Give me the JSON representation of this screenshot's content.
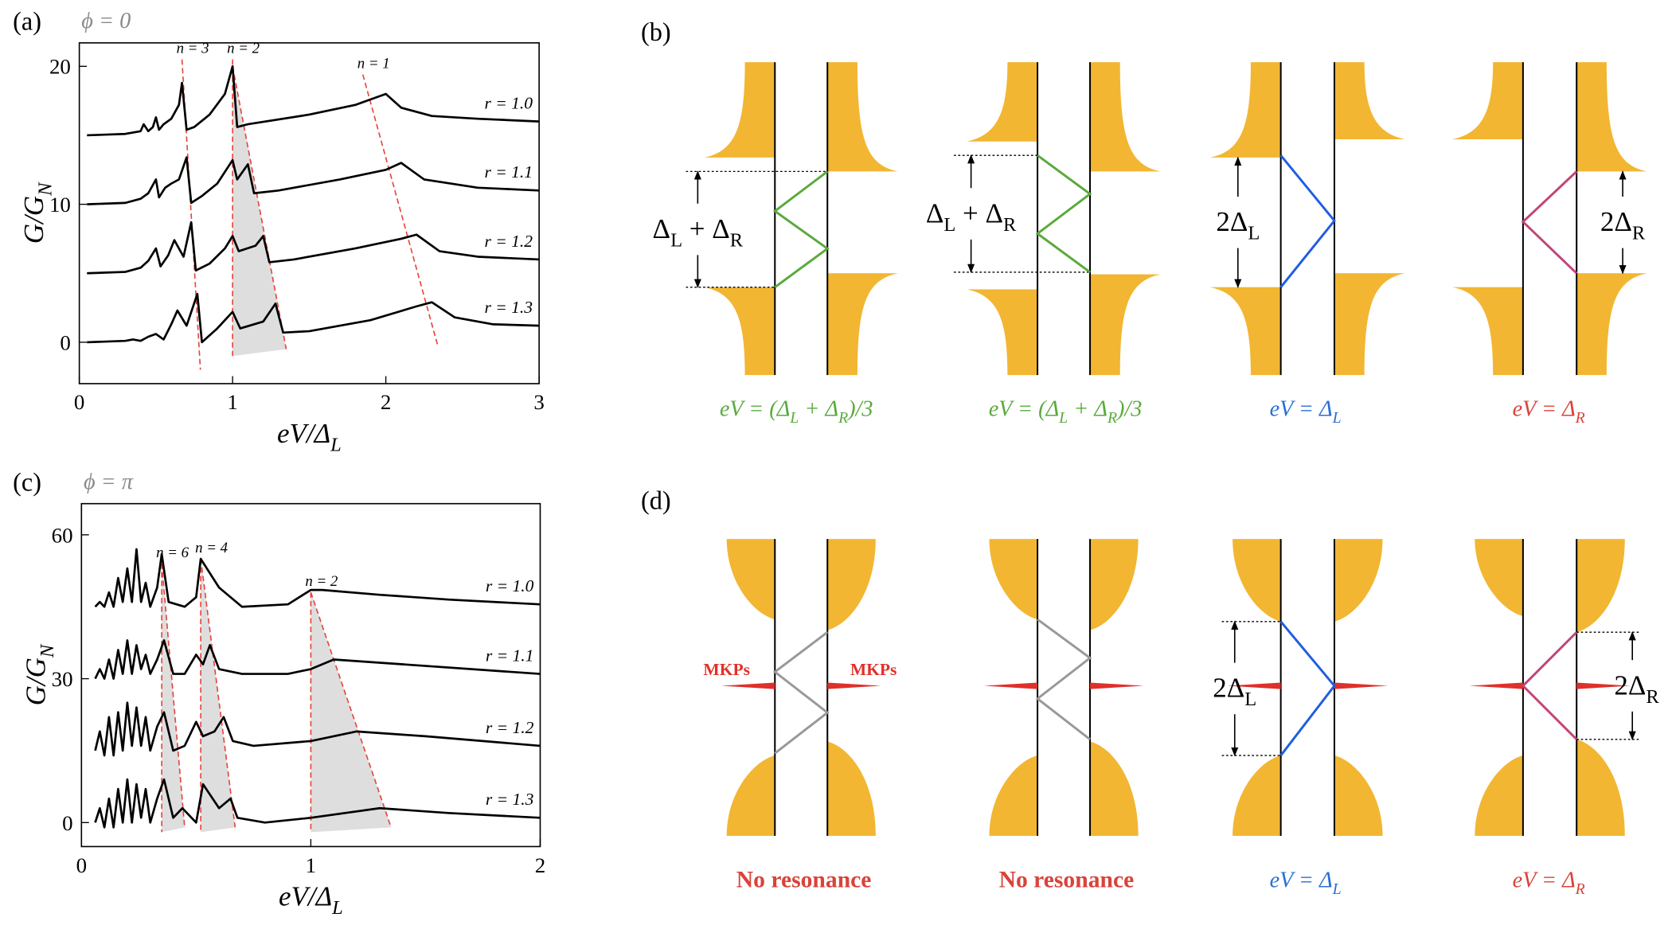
{
  "chart_data": [
    {
      "type": "line",
      "panel": "(a)",
      "title": "ϕ = 0",
      "xlabel": [
        "eV/Δ",
        "L"
      ],
      "ylabel": [
        "G/G",
        "N"
      ],
      "xlim": [
        0,
        3
      ],
      "ylim": [
        -3,
        21.7
      ],
      "xticks": [
        0,
        1,
        2,
        3
      ],
      "yticks": [
        0,
        10,
        20
      ],
      "guide_color": "#e8413a",
      "shade_color": "#dedede",
      "series": [
        {
          "name": "r = 1.0",
          "color": "#000000",
          "x": [
            0.05,
            0.3,
            0.4,
            0.42,
            0.45,
            0.48,
            0.5,
            0.52,
            0.55,
            0.6,
            0.65,
            0.67,
            0.7,
            0.75,
            0.85,
            0.95,
            1.0,
            1.03,
            1.1,
            1.5,
            1.8,
            2.0,
            2.1,
            2.3,
            2.6,
            3.0
          ],
          "values": [
            15,
            15.1,
            15.3,
            15.8,
            15.3,
            15.6,
            16.3,
            15.4,
            15.8,
            16.2,
            17.2,
            18.8,
            15.4,
            15.6,
            16.5,
            18,
            20,
            15.6,
            15.8,
            16.5,
            17.2,
            18,
            17,
            16.4,
            16.2,
            16
          ]
        },
        {
          "name": "r = 1.1",
          "color": "#000000",
          "x": [
            0.05,
            0.3,
            0.4,
            0.45,
            0.5,
            0.52,
            0.56,
            0.6,
            0.65,
            0.7,
            0.73,
            0.8,
            0.9,
            1.0,
            1.03,
            1.1,
            1.14,
            1.3,
            1.7,
            2.0,
            2.1,
            2.25,
            2.6,
            3.0
          ],
          "values": [
            10,
            10.1,
            10.4,
            10.8,
            11.8,
            10.5,
            11.2,
            11.5,
            11.8,
            13.4,
            10.1,
            10.6,
            11.5,
            13.2,
            11.8,
            12.9,
            10.8,
            11,
            11.8,
            12.5,
            13,
            11.8,
            11.2,
            11
          ]
        },
        {
          "name": "r = 1.2",
          "color": "#000000",
          "x": [
            0.05,
            0.3,
            0.4,
            0.45,
            0.5,
            0.53,
            0.58,
            0.62,
            0.68,
            0.73,
            0.76,
            0.85,
            0.95,
            1.0,
            1.04,
            1.15,
            1.2,
            1.24,
            1.4,
            1.8,
            2.1,
            2.2,
            2.35,
            2.6,
            3.0
          ],
          "values": [
            5,
            5.1,
            5.4,
            5.9,
            6.8,
            5.5,
            6.3,
            7.4,
            6.2,
            8.7,
            5.2,
            5.7,
            6.8,
            7.7,
            6.6,
            7,
            7.7,
            5.8,
            6,
            6.8,
            7.5,
            7.8,
            6.6,
            6.2,
            6
          ]
        },
        {
          "name": "r = 1.3",
          "color": "#000000",
          "x": [
            0.05,
            0.3,
            0.35,
            0.4,
            0.45,
            0.5,
            0.55,
            0.6,
            0.64,
            0.7,
            0.77,
            0.8,
            0.9,
            1.0,
            1.05,
            1.2,
            1.28,
            1.33,
            1.5,
            1.9,
            2.2,
            2.3,
            2.45,
            2.7,
            3.0
          ],
          "values": [
            0,
            0.1,
            0.2,
            0.1,
            0.4,
            0.6,
            0.2,
            1.3,
            2.3,
            1.2,
            3.5,
            0,
            1,
            2.2,
            1,
            1.5,
            2.8,
            0.7,
            0.8,
            1.6,
            2.6,
            2.9,
            1.8,
            1.3,
            1.2
          ]
        }
      ],
      "guides": [
        {
          "label": "n = 3",
          "x": [
            0.67,
            0.79
          ],
          "y": [
            20.5,
            -2
          ]
        },
        {
          "label": "n = 2",
          "x": [
            1.0,
            1.0
          ],
          "y": [
            20.5,
            -1
          ]
        },
        {
          "x": [
            1.0,
            1.35
          ],
          "y": [
            20,
            -0.5
          ]
        },
        {
          "label": "n = 1",
          "x": [
            1.85,
            2.34
          ],
          "y": [
            19.4,
            -0.3
          ]
        }
      ],
      "shaded": [
        {
          "x": [
            1.0,
            1.0,
            1.35
          ],
          "y": [
            20,
            -1,
            -0.5
          ]
        }
      ]
    },
    {
      "type": "line",
      "panel": "(c)",
      "title": "ϕ = π",
      "xlabel": [
        "eV/Δ",
        "L"
      ],
      "ylabel": [
        "G/G",
        "N"
      ],
      "xlim": [
        0,
        2
      ],
      "ylim": [
        -5,
        66.5
      ],
      "xticks": [
        0,
        1,
        2
      ],
      "yticks": [
        0,
        30,
        60
      ],
      "guide_color": "#e8413a",
      "shade_color": "#dedede",
      "series": [
        {
          "name": "r = 1.0",
          "color": "#000000",
          "x": [
            0.06,
            0.08,
            0.1,
            0.12,
            0.14,
            0.16,
            0.18,
            0.2,
            0.22,
            0.24,
            0.26,
            0.28,
            0.3,
            0.33,
            0.35,
            0.38,
            0.45,
            0.5,
            0.52,
            0.6,
            0.7,
            0.9,
            1.0,
            1.05,
            1.3,
            1.6,
            2.0
          ],
          "values": [
            45,
            46,
            45,
            48,
            45,
            51,
            46,
            53,
            46,
            57,
            46,
            50,
            45,
            49,
            56,
            46,
            45,
            47,
            55,
            49,
            45,
            45.5,
            48.5,
            48.5,
            47.5,
            46.5,
            45.5
          ]
        },
        {
          "name": "r = 1.1",
          "color": "#000000",
          "x": [
            0.06,
            0.08,
            0.1,
            0.12,
            0.14,
            0.16,
            0.18,
            0.2,
            0.22,
            0.24,
            0.26,
            0.28,
            0.3,
            0.33,
            0.36,
            0.4,
            0.45,
            0.5,
            0.53,
            0.56,
            0.6,
            0.7,
            0.9,
            1.0,
            1.1,
            1.4,
            2.0
          ],
          "values": [
            30,
            32,
            30,
            34,
            30,
            36,
            31,
            38,
            31,
            37,
            32,
            35,
            31,
            34,
            38,
            31,
            31,
            35,
            33,
            37,
            32,
            31,
            31,
            32,
            34,
            33,
            31
          ]
        },
        {
          "name": "r = 1.2",
          "color": "#000000",
          "x": [
            0.06,
            0.08,
            0.1,
            0.12,
            0.14,
            0.16,
            0.18,
            0.2,
            0.22,
            0.24,
            0.26,
            0.28,
            0.3,
            0.33,
            0.36,
            0.4,
            0.45,
            0.5,
            0.53,
            0.58,
            0.62,
            0.66,
            0.75,
            1.0,
            1.2,
            1.5,
            2.0
          ],
          "values": [
            15,
            19,
            14,
            22,
            14,
            23,
            15,
            25,
            16,
            24,
            16,
            22,
            15,
            20,
            23,
            15,
            16,
            21,
            18,
            19,
            22,
            17,
            16,
            17,
            19,
            18,
            16
          ]
        },
        {
          "name": "r = 1.3",
          "color": "#000000",
          "x": [
            0.06,
            0.08,
            0.1,
            0.12,
            0.14,
            0.16,
            0.18,
            0.2,
            0.22,
            0.24,
            0.26,
            0.28,
            0.3,
            0.33,
            0.36,
            0.4,
            0.44,
            0.5,
            0.53,
            0.6,
            0.65,
            0.68,
            0.8,
            1.0,
            1.3,
            1.6,
            2.0
          ],
          "values": [
            0,
            3,
            -1,
            5,
            -1,
            7,
            0,
            9,
            0,
            8,
            1,
            7,
            0,
            5,
            9,
            1,
            3,
            0,
            8,
            3,
            5,
            1,
            0,
            1,
            3,
            2,
            1
          ]
        }
      ],
      "guides": [
        {
          "label": "n = 6",
          "x": [
            0.35,
            0.35
          ],
          "y": [
            54,
            -2
          ]
        },
        {
          "x": [
            0.35,
            0.45
          ],
          "y": [
            54,
            -1
          ]
        },
        {
          "label": "n = 4",
          "x": [
            0.52,
            0.52
          ],
          "y": [
            55,
            -2
          ]
        },
        {
          "x": [
            0.52,
            0.67
          ],
          "y": [
            55,
            -1
          ]
        },
        {
          "label": "n = 2",
          "x": [
            1.0,
            1.0
          ],
          "y": [
            48,
            -2
          ]
        },
        {
          "x": [
            1.0,
            1.35
          ],
          "y": [
            48,
            -1
          ]
        }
      ],
      "shaded": [
        {
          "x": [
            0.35,
            0.35,
            0.45
          ],
          "y": [
            54,
            -2,
            -1
          ]
        },
        {
          "x": [
            0.52,
            0.52,
            0.67
          ],
          "y": [
            55,
            -2,
            -1
          ]
        },
        {
          "x": [
            1.0,
            1.0,
            1.35
          ],
          "y": [
            48,
            -2,
            -1
          ]
        }
      ]
    }
  ],
  "diagrams": {
    "b": {
      "panel": "(b)",
      "gap_color": "#f2b632",
      "items": [
        {
          "label": [
            "Δ",
            "L",
            " + Δ",
            "R"
          ],
          "caption": [
            "eV = (Δ",
            "L",
            " + Δ",
            "R",
            ")/3"
          ],
          "line_color": "#5aaa3c",
          "caption_color": "#5aaa3c"
        },
        {
          "label": [
            "Δ",
            "L",
            " + Δ",
            "R"
          ],
          "caption": [
            "eV = (Δ",
            "L",
            " + Δ",
            "R",
            ")/3"
          ],
          "line_color": "#5aaa3c",
          "caption_color": "#5aaa3c"
        },
        {
          "label": [
            "2Δ",
            "L"
          ],
          "caption": [
            "eV = Δ",
            "L"
          ],
          "line_color": "#1f5ee0",
          "caption_color": "#2a6fd6"
        },
        {
          "label": [
            "2Δ",
            "R"
          ],
          "caption": [
            "eV = Δ",
            "R"
          ],
          "line_color": "#c0457a",
          "caption_color": "#d9433a"
        }
      ]
    },
    "d": {
      "panel": "(d)",
      "gap_color": "#f2b632",
      "mkp_color": "#e0302a",
      "items": [
        {
          "markers": [
            "MKPs",
            "MKPs"
          ],
          "caption": [
            "No resonance"
          ],
          "line_color": "#999999",
          "caption_color": "#d9433a"
        },
        {
          "caption": [
            "No resonance"
          ],
          "line_color": "#999999",
          "caption_color": "#d9433a"
        },
        {
          "label": [
            "2Δ",
            "L"
          ],
          "caption": [
            "eV = Δ",
            "L"
          ],
          "line_color": "#1f5ee0",
          "caption_color": "#2a6fd6"
        },
        {
          "label": [
            "2Δ",
            "R"
          ],
          "caption": [
            "eV = Δ",
            "R"
          ],
          "line_color": "#c0457a",
          "caption_color": "#d9433a"
        }
      ]
    }
  }
}
